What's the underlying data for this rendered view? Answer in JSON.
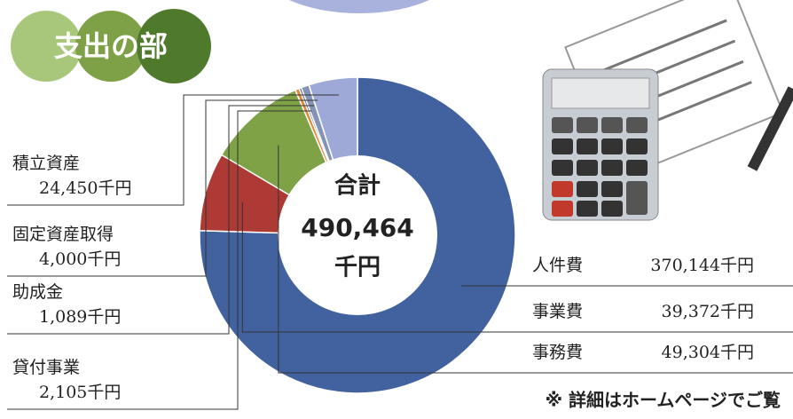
{
  "chart_data": {
    "type": "donut",
    "title": "支出の部",
    "categories": [
      "人件費",
      "事業費",
      "事務費",
      "貸付事業",
      "助成金",
      "固定資産取得",
      "積立資産"
    ],
    "values": [
      370144,
      39372,
      49304,
      2105,
      1089,
      4000,
      24450
    ],
    "value_labels": [
      "370,144千円",
      "39,372千円",
      "49,304千円",
      "2,105千円",
      "1,089千円",
      "4,000千円",
      "24,450千円"
    ],
    "colors": [
      "#41619f",
      "#ad3a34",
      "#7fa246",
      "#e0883a",
      "#34457a",
      "#8593b6",
      "#9ea9d8"
    ],
    "total": {
      "title": "合計",
      "value": 490464,
      "value_label": "490,464",
      "unit": "千円"
    },
    "note": "※ 詳細はホームページでご覧"
  }
}
